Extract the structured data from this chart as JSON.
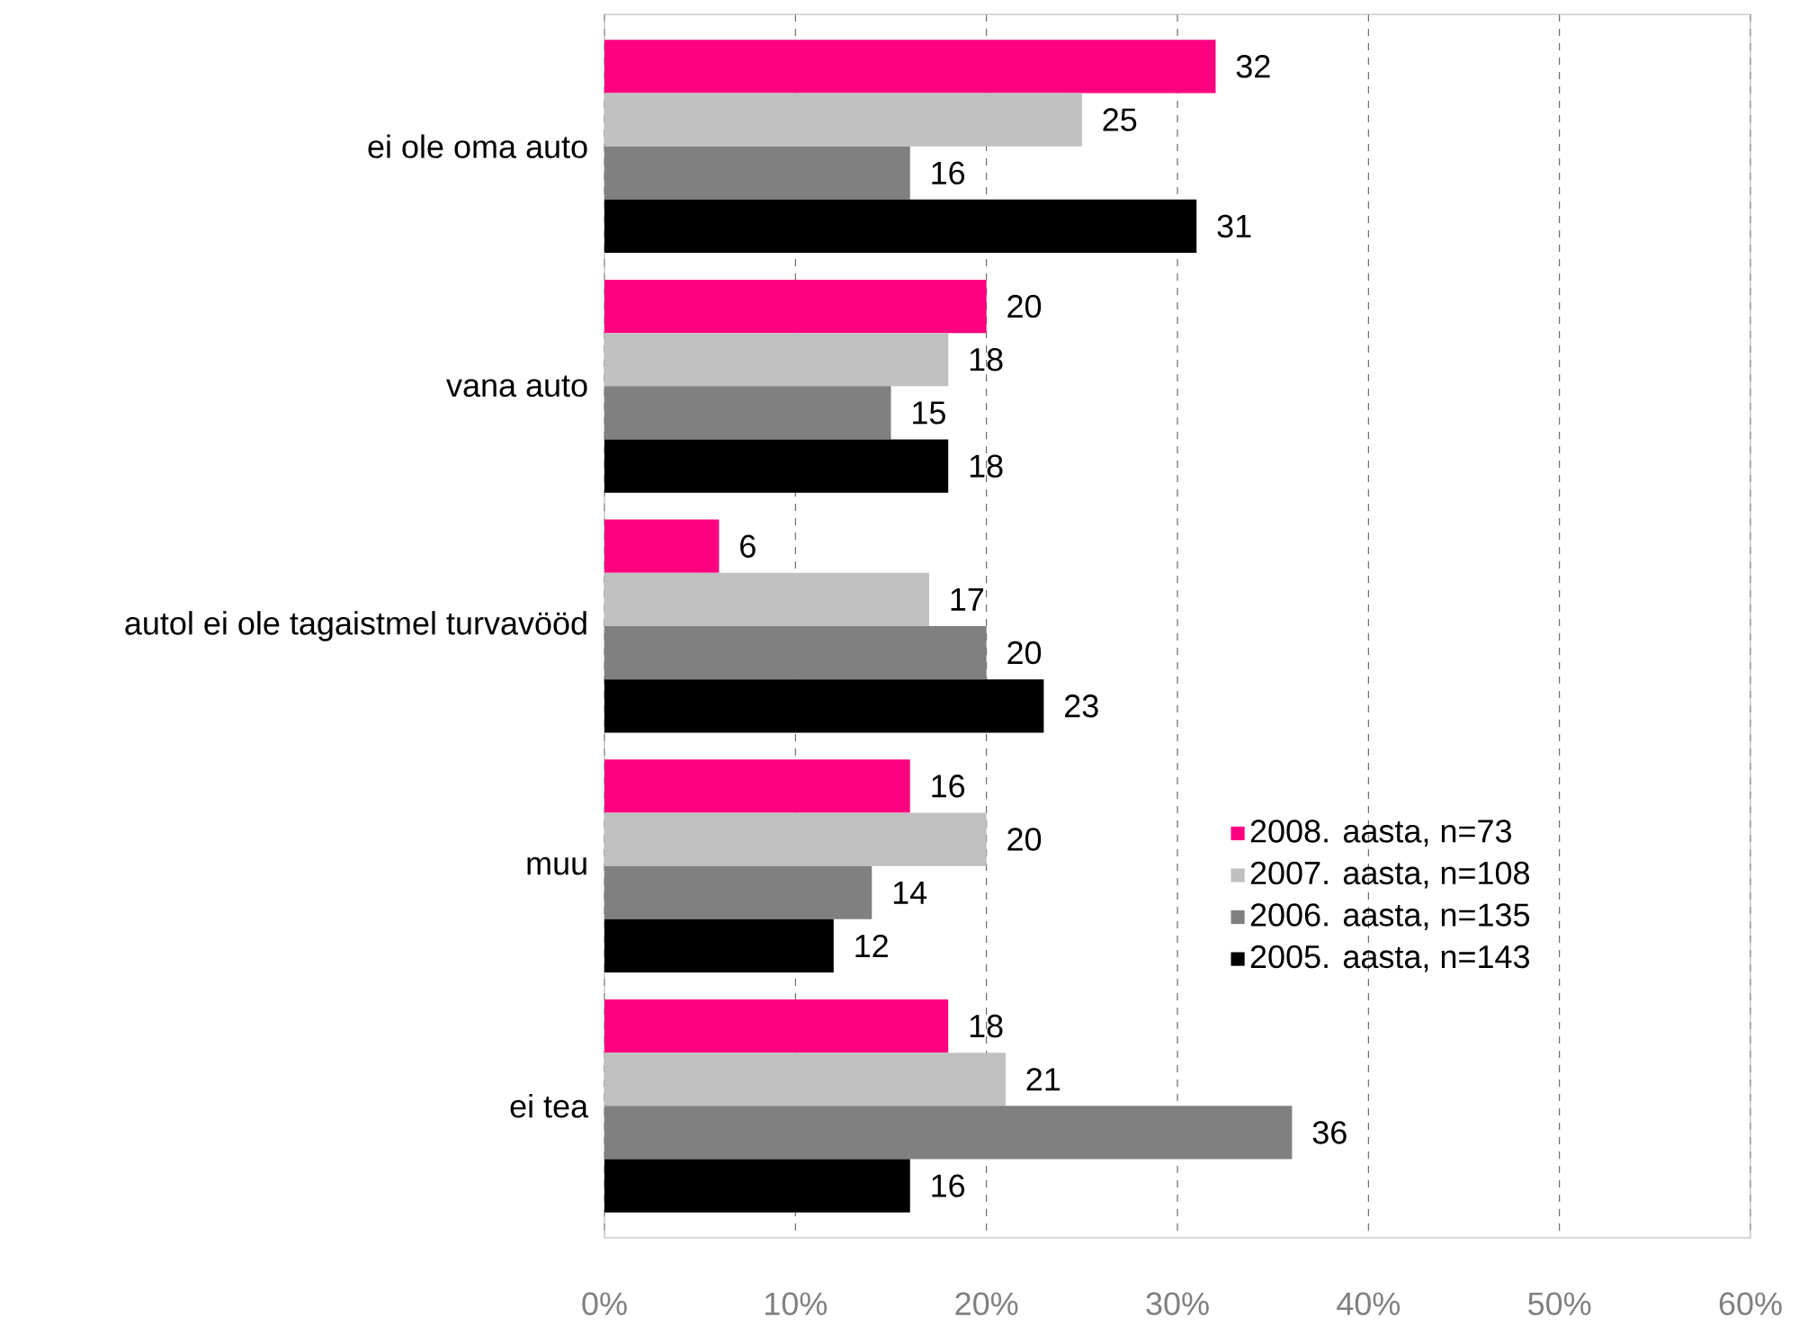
{
  "chart_data": {
    "type": "bar",
    "orientation": "horizontal",
    "categories": [
      "ei ole oma auto",
      "vana auto",
      "autol ei ole tagaistmel turvavööd",
      "muu",
      "ei tea"
    ],
    "series": [
      {
        "name": "2008. aasta, n=73",
        "color": "#ff0080",
        "values": [
          32,
          20,
          6,
          16,
          18
        ]
      },
      {
        "name": "2007. aasta, n=108",
        "color": "#c0c0c0",
        "values": [
          25,
          18,
          17,
          20,
          21
        ]
      },
      {
        "name": "2006. aasta, n=135",
        "color": "#808080",
        "values": [
          16,
          15,
          20,
          14,
          36
        ]
      },
      {
        "name": "2005. aasta, n=143",
        "color": "#000000",
        "values": [
          31,
          18,
          23,
          12,
          16
        ]
      }
    ],
    "xlim": [
      0,
      60
    ],
    "xticks": [
      {
        "value": 0,
        "label": "0%"
      },
      {
        "value": 10,
        "label": "10%"
      },
      {
        "value": 20,
        "label": "20%"
      },
      {
        "value": 30,
        "label": "30%"
      },
      {
        "value": 40,
        "label": "40%"
      },
      {
        "value": 50,
        "label": "50%"
      },
      {
        "value": 60,
        "label": "60%"
      }
    ],
    "grid": "x",
    "legend": "right",
    "data_labels": true
  }
}
